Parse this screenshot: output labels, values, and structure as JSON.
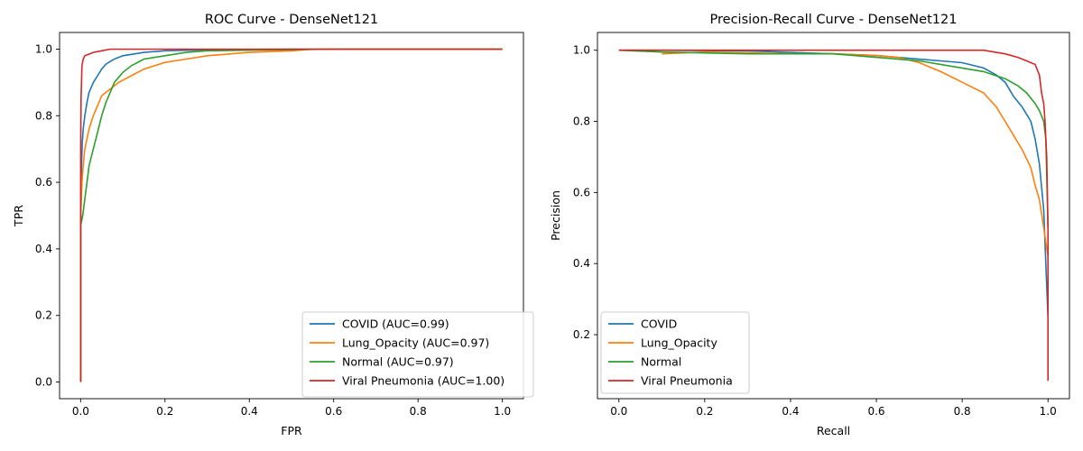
{
  "chart_data": [
    {
      "type": "line",
      "title": "ROC Curve - DenseNet121",
      "xlabel": "FPR",
      "ylabel": "TPR",
      "xlim": [
        -0.05,
        1.05
      ],
      "ylim": [
        -0.05,
        1.05
      ],
      "xticks": [
        "0.0",
        "0.2",
        "0.4",
        "0.6",
        "0.8",
        "1.0"
      ],
      "yticks": [
        "0.0",
        "0.2",
        "0.4",
        "0.6",
        "0.8",
        "1.0"
      ],
      "grid": false,
      "legend_position": "lower-right",
      "series": [
        {
          "name": "COVID (AUC=0.99)",
          "color": "#1f77b4",
          "points": [
            [
              0.0,
              0.0
            ],
            [
              0.0,
              0.45
            ],
            [
              0.002,
              0.65
            ],
            [
              0.004,
              0.72
            ],
            [
              0.006,
              0.76
            ],
            [
              0.01,
              0.8
            ],
            [
              0.015,
              0.84
            ],
            [
              0.02,
              0.87
            ],
            [
              0.03,
              0.9
            ],
            [
              0.04,
              0.92
            ],
            [
              0.05,
              0.94
            ],
            [
              0.06,
              0.955
            ],
            [
              0.08,
              0.97
            ],
            [
              0.1,
              0.98
            ],
            [
              0.15,
              0.99
            ],
            [
              0.2,
              0.995
            ],
            [
              0.3,
              0.998
            ],
            [
              0.5,
              1.0
            ],
            [
              1.0,
              1.0
            ]
          ]
        },
        {
          "name": "Lung_Opacity (AUC=0.97)",
          "color": "#ff7f0e",
          "points": [
            [
              0.0,
              0.0
            ],
            [
              0.0,
              0.5
            ],
            [
              0.003,
              0.6
            ],
            [
              0.006,
              0.65
            ],
            [
              0.01,
              0.7
            ],
            [
              0.02,
              0.76
            ],
            [
              0.03,
              0.8
            ],
            [
              0.04,
              0.83
            ],
            [
              0.05,
              0.86
            ],
            [
              0.07,
              0.88
            ],
            [
              0.09,
              0.9
            ],
            [
              0.12,
              0.92
            ],
            [
              0.15,
              0.94
            ],
            [
              0.2,
              0.96
            ],
            [
              0.25,
              0.97
            ],
            [
              0.3,
              0.98
            ],
            [
              0.4,
              0.99
            ],
            [
              0.5,
              0.995
            ],
            [
              0.55,
              1.0
            ],
            [
              1.0,
              1.0
            ]
          ]
        },
        {
          "name": "Normal (AUC=0.97)",
          "color": "#2ca02c",
          "points": [
            [
              0.0,
              0.0
            ],
            [
              0.0,
              0.47
            ],
            [
              0.005,
              0.5
            ],
            [
              0.01,
              0.55
            ],
            [
              0.015,
              0.6
            ],
            [
              0.02,
              0.65
            ],
            [
              0.03,
              0.7
            ],
            [
              0.04,
              0.75
            ],
            [
              0.05,
              0.8
            ],
            [
              0.06,
              0.84
            ],
            [
              0.07,
              0.87
            ],
            [
              0.08,
              0.9
            ],
            [
              0.1,
              0.93
            ],
            [
              0.12,
              0.95
            ],
            [
              0.15,
              0.97
            ],
            [
              0.2,
              0.98
            ],
            [
              0.25,
              0.99
            ],
            [
              0.3,
              0.995
            ],
            [
              0.6,
              1.0
            ],
            [
              1.0,
              1.0
            ]
          ]
        },
        {
          "name": "Viral Pneumonia (AUC=1.00)",
          "color": "#d62728",
          "points": [
            [
              0.0,
              0.0
            ],
            [
              0.0,
              0.7
            ],
            [
              0.001,
              0.85
            ],
            [
              0.003,
              0.95
            ],
            [
              0.006,
              0.97
            ],
            [
              0.01,
              0.98
            ],
            [
              0.02,
              0.985
            ],
            [
              0.03,
              0.99
            ],
            [
              0.05,
              0.995
            ],
            [
              0.07,
              1.0
            ],
            [
              1.0,
              1.0
            ]
          ]
        }
      ]
    },
    {
      "type": "line",
      "title": "Precision-Recall Curve - DenseNet121",
      "xlabel": "Recall",
      "ylabel": "Precision",
      "xlim": [
        -0.05,
        1.05
      ],
      "ylim": [
        0.02,
        1.05
      ],
      "xticks": [
        "0.0",
        "0.2",
        "0.4",
        "0.6",
        "0.8",
        "1.0"
      ],
      "yticks": [
        "0.2",
        "0.4",
        "0.6",
        "0.8",
        "1.0"
      ],
      "grid": false,
      "legend_position": "lower-left",
      "series": [
        {
          "name": "COVID",
          "color": "#1f77b4",
          "points": [
            [
              0.0,
              1.0
            ],
            [
              0.1,
              1.0
            ],
            [
              0.3,
              0.998
            ],
            [
              0.5,
              0.99
            ],
            [
              0.6,
              0.985
            ],
            [
              0.7,
              0.975
            ],
            [
              0.75,
              0.97
            ],
            [
              0.8,
              0.965
            ],
            [
              0.85,
              0.95
            ],
            [
              0.88,
              0.93
            ],
            [
              0.9,
              0.91
            ],
            [
              0.92,
              0.87
            ],
            [
              0.94,
              0.84
            ],
            [
              0.96,
              0.8
            ],
            [
              0.97,
              0.75
            ],
            [
              0.98,
              0.68
            ],
            [
              0.99,
              0.55
            ],
            [
              0.995,
              0.4
            ],
            [
              1.0,
              0.25
            ]
          ]
        },
        {
          "name": "Lung_Opacity",
          "color": "#ff7f0e",
          "points": [
            [
              0.1,
              0.99
            ],
            [
              0.2,
              0.995
            ],
            [
              0.3,
              0.993
            ],
            [
              0.4,
              0.99
            ],
            [
              0.5,
              0.99
            ],
            [
              0.6,
              0.985
            ],
            [
              0.65,
              0.98
            ],
            [
              0.7,
              0.965
            ],
            [
              0.75,
              0.94
            ],
            [
              0.8,
              0.91
            ],
            [
              0.85,
              0.88
            ],
            [
              0.88,
              0.84
            ],
            [
              0.9,
              0.8
            ],
            [
              0.92,
              0.76
            ],
            [
              0.94,
              0.72
            ],
            [
              0.96,
              0.67
            ],
            [
              0.97,
              0.62
            ],
            [
              0.98,
              0.58
            ],
            [
              0.99,
              0.5
            ],
            [
              1.0,
              0.42
            ]
          ]
        },
        {
          "name": "Normal",
          "color": "#2ca02c",
          "points": [
            [
              0.0,
              1.0
            ],
            [
              0.1,
              0.995
            ],
            [
              0.3,
              0.99
            ],
            [
              0.5,
              0.99
            ],
            [
              0.6,
              0.98
            ],
            [
              0.7,
              0.97
            ],
            [
              0.8,
              0.95
            ],
            [
              0.85,
              0.94
            ],
            [
              0.9,
              0.92
            ],
            [
              0.93,
              0.9
            ],
            [
              0.95,
              0.88
            ],
            [
              0.97,
              0.85
            ],
            [
              0.98,
              0.83
            ],
            [
              0.99,
              0.8
            ],
            [
              0.995,
              0.75
            ],
            [
              0.998,
              0.6
            ],
            [
              1.0,
              0.5
            ]
          ]
        },
        {
          "name": "Viral Pneumonia",
          "color": "#d62728",
          "points": [
            [
              0.0,
              1.0
            ],
            [
              0.5,
              1.0
            ],
            [
              0.85,
              1.0
            ],
            [
              0.9,
              0.99
            ],
            [
              0.93,
              0.98
            ],
            [
              0.95,
              0.97
            ],
            [
              0.97,
              0.96
            ],
            [
              0.98,
              0.93
            ],
            [
              0.985,
              0.88
            ],
            [
              0.99,
              0.85
            ],
            [
              0.993,
              0.8
            ],
            [
              0.997,
              0.7
            ],
            [
              1.0,
              0.5
            ],
            [
              1.0,
              0.07
            ]
          ]
        }
      ]
    }
  ]
}
